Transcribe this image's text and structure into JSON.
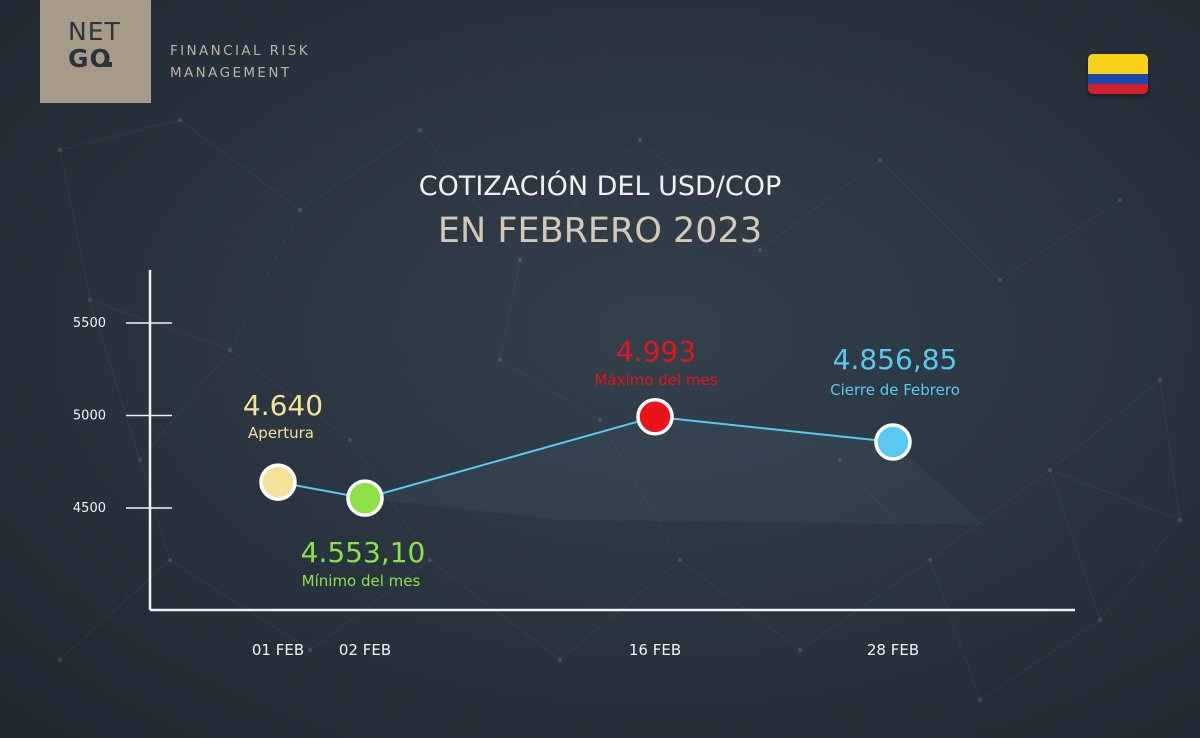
{
  "brand": {
    "logo_line1": "NET",
    "logo_line2": "GO",
    "company_line1": "FINANCIAL RISK",
    "company_line2": "MANAGEMENT",
    "logo_color": "#a69b89"
  },
  "flag": {
    "name": "colombia-flag",
    "colors": [
      "#f7d117",
      "#1c46a8",
      "#d21f2b"
    ]
  },
  "chart_data": {
    "type": "line",
    "title": "COTIZACIÓN DEL USD/COP",
    "subtitle": "EN FEBRERO 2023",
    "xlabel": "",
    "ylabel": "",
    "categories": [
      "01 FEB",
      "02 FEB",
      "16 FEB",
      "28 FEB"
    ],
    "series": [
      {
        "color": "#59c9f0",
        "values": [
          4640,
          4553.1,
          4993,
          4856.85
        ],
        "value_labels": [
          "4.640",
          "4.553,10",
          "4.993",
          "4.856,85"
        ],
        "point_labels": [
          "Apertura",
          "Mínimo del mes",
          "Máximo del mes",
          "Cierre de Febrero"
        ],
        "point_colors": [
          "#f6e19b",
          "#8ee04a",
          "#e8131b",
          "#59c9f0"
        ]
      }
    ],
    "yticks": [
      4500,
      5000,
      5500
    ],
    "ytick_labels": [
      "4500",
      "5000",
      "5500"
    ],
    "ylim": [
      4500,
      5500
    ],
    "grid": false,
    "legend": "none"
  }
}
